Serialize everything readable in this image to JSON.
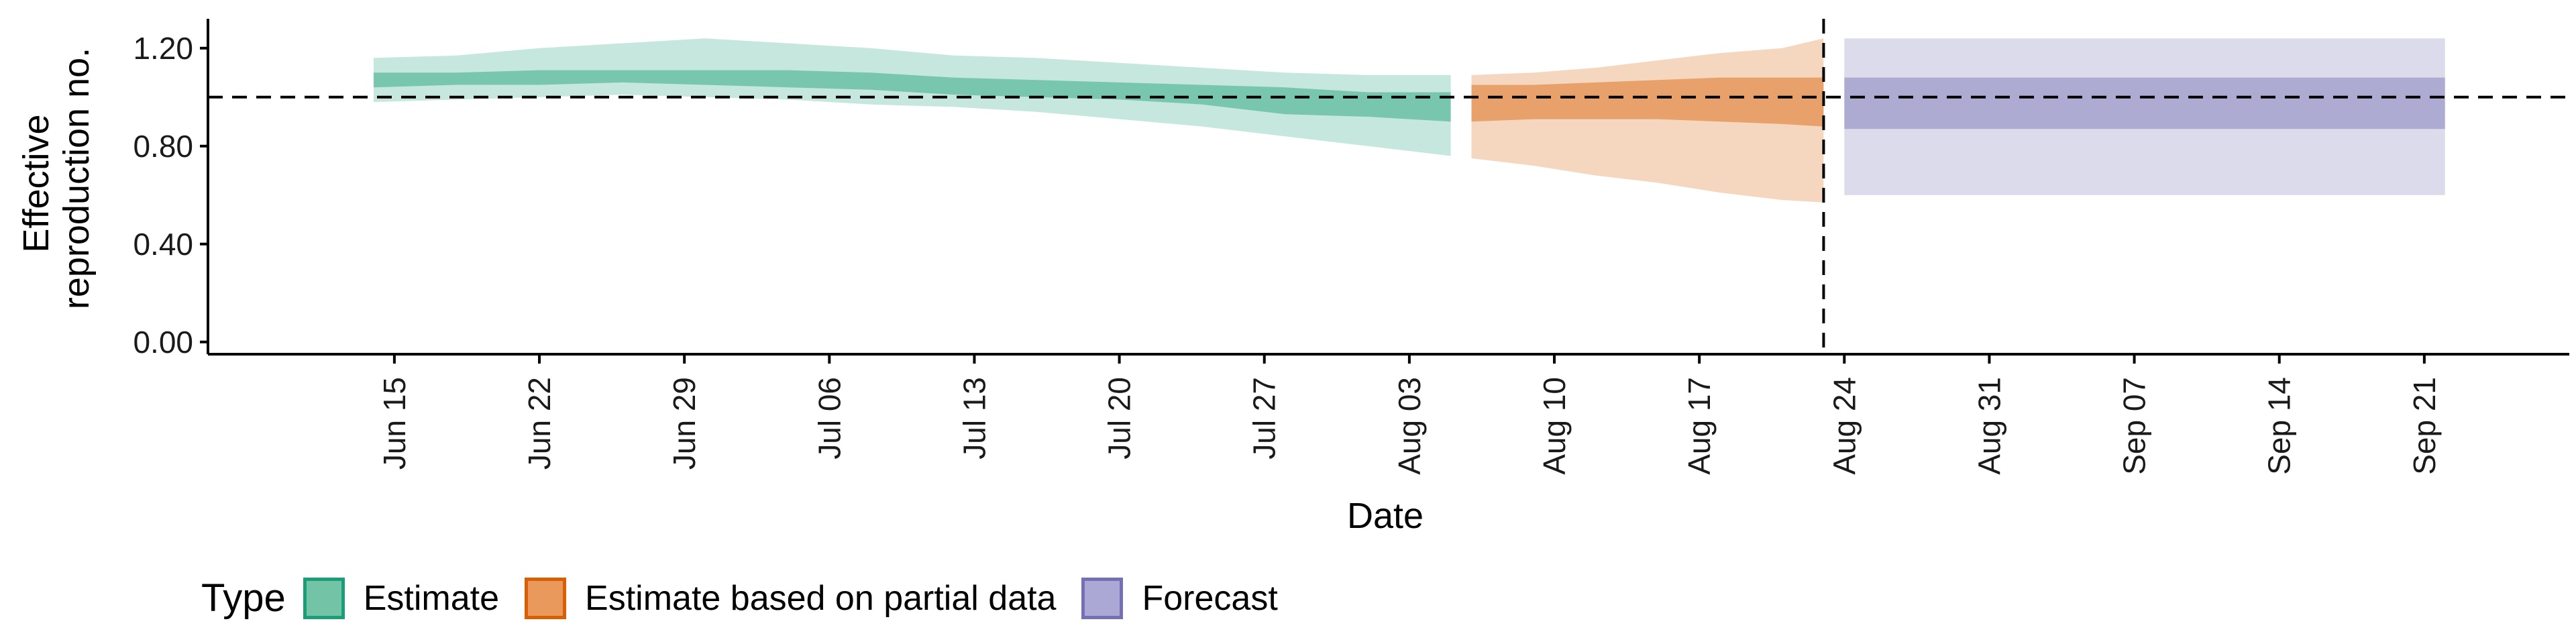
{
  "chart_data": {
    "type": "area",
    "title": "",
    "xlabel": "Date",
    "ylabel_lines": [
      "Effective",
      "reproduction no."
    ],
    "ylim": [
      -0.05,
      1.32
    ],
    "yticks": [
      0.0,
      0.4,
      0.8,
      1.2
    ],
    "ytick_labels": [
      "0.00",
      "0.40",
      "0.80",
      "1.20"
    ],
    "xlim": [
      "2020-06-06",
      "2020-09-28"
    ],
    "xticks": [
      "2020-06-15",
      "2020-06-22",
      "2020-06-29",
      "2020-07-06",
      "2020-07-13",
      "2020-07-20",
      "2020-07-27",
      "2020-08-03",
      "2020-08-10",
      "2020-08-17",
      "2020-08-24",
      "2020-08-31",
      "2020-09-07",
      "2020-09-14",
      "2020-09-21"
    ],
    "xtick_labels": [
      "Jun 15",
      "Jun 22",
      "Jun 29",
      "Jul 06",
      "Jul 13",
      "Jul 20",
      "Jul 27",
      "Aug 03",
      "Aug 10",
      "Aug 17",
      "Aug 24",
      "Aug 31",
      "Sep 07",
      "Sep 14",
      "Sep 21"
    ],
    "reference_hline": 1.0,
    "reference_vline": "2020-08-23",
    "grid": false,
    "legend_position": "bottom",
    "legend_title": "Type",
    "series": [
      {
        "name": "Estimate",
        "fill": "#1b9e77",
        "x": [
          "2020-06-14",
          "2020-06-18",
          "2020-06-22",
          "2020-06-26",
          "2020-06-30",
          "2020-07-04",
          "2020-07-08",
          "2020-07-12",
          "2020-07-16",
          "2020-07-20",
          "2020-07-24",
          "2020-07-28",
          "2020-08-01",
          "2020-08-05"
        ],
        "inner_lower": [
          1.04,
          1.05,
          1.05,
          1.06,
          1.05,
          1.04,
          1.03,
          1.01,
          1.0,
          0.99,
          0.97,
          0.93,
          0.92,
          0.9
        ],
        "inner_upper": [
          1.1,
          1.1,
          1.11,
          1.11,
          1.11,
          1.11,
          1.1,
          1.08,
          1.07,
          1.06,
          1.05,
          1.04,
          1.02,
          1.02
        ],
        "outer_lower": [
          0.98,
          0.99,
          1.0,
          1.01,
          1.0,
          0.99,
          0.97,
          0.96,
          0.94,
          0.91,
          0.88,
          0.84,
          0.8,
          0.76
        ],
        "outer_upper": [
          1.16,
          1.17,
          1.2,
          1.22,
          1.24,
          1.22,
          1.2,
          1.17,
          1.16,
          1.14,
          1.12,
          1.1,
          1.09,
          1.09
        ]
      },
      {
        "name": "Estimate based on partial data",
        "fill": "#d95f02",
        "x": [
          "2020-08-06",
          "2020-08-09",
          "2020-08-12",
          "2020-08-15",
          "2020-08-18",
          "2020-08-21",
          "2020-08-23"
        ],
        "inner_lower": [
          0.9,
          0.91,
          0.91,
          0.91,
          0.9,
          0.89,
          0.88
        ],
        "inner_upper": [
          1.05,
          1.05,
          1.06,
          1.07,
          1.08,
          1.08,
          1.08
        ],
        "outer_lower": [
          0.75,
          0.72,
          0.68,
          0.65,
          0.61,
          0.58,
          0.57
        ],
        "outer_upper": [
          1.09,
          1.1,
          1.12,
          1.15,
          1.18,
          1.2,
          1.24
        ]
      },
      {
        "name": "Forecast",
        "fill": "#7570b3",
        "x": [
          "2020-08-24",
          "2020-09-22"
        ],
        "inner_lower": [
          0.87,
          0.87
        ],
        "inner_upper": [
          1.08,
          1.08
        ],
        "outer_lower": [
          0.6,
          0.6
        ],
        "outer_upper": [
          1.24,
          1.24
        ]
      }
    ]
  },
  "legend": {
    "title": "Type",
    "items": [
      {
        "label": "Estimate",
        "fill": "#73c3a7",
        "border": "#1b9e77"
      },
      {
        "label": "Estimate based on partial data",
        "fill": "#e9995c",
        "border": "#d95f02"
      },
      {
        "label": "Forecast",
        "fill": "#aba8d5",
        "border": "#7570b3"
      }
    ]
  }
}
